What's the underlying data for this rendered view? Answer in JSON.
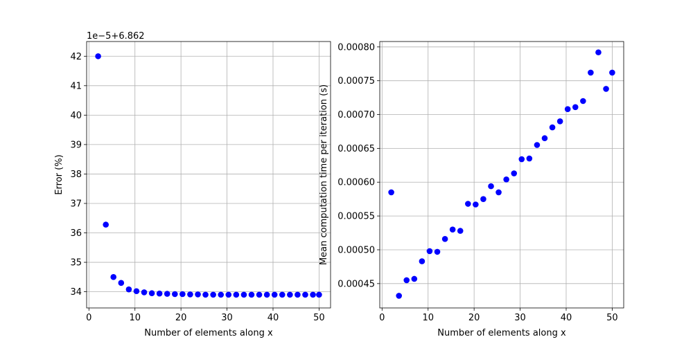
{
  "chart_data": [
    {
      "type": "scatter",
      "xlabel": "Number of elements along x",
      "ylabel": "Error (%)",
      "offset_label": "1e−5+6.862",
      "xlim": [
        -0.5,
        52.5
      ],
      "ylim": [
        33.45,
        42.5
      ],
      "xticks": [
        0,
        10,
        20,
        30,
        40,
        50
      ],
      "yticks": [
        34,
        35,
        36,
        37,
        38,
        39,
        40,
        41,
        42
      ],
      "ytick_labels": [
        "34",
        "35",
        "36",
        "37",
        "38",
        "39",
        "40",
        "41",
        "42"
      ],
      "grid": true,
      "color": "#0000ff",
      "x": [
        2,
        3.67,
        5.33,
        7,
        8.67,
        10.33,
        12,
        13.67,
        15.33,
        17,
        18.67,
        20.33,
        22,
        23.67,
        25.33,
        27,
        28.67,
        30.33,
        32,
        33.67,
        35.33,
        37,
        38.67,
        40.33,
        42,
        43.67,
        45.33,
        47,
        48.67,
        50
      ],
      "y": [
        42.0,
        36.28,
        34.5,
        34.3,
        34.08,
        34.02,
        33.98,
        33.95,
        33.94,
        33.93,
        33.92,
        33.92,
        33.91,
        33.91,
        33.9,
        33.9,
        33.9,
        33.9,
        33.9,
        33.9,
        33.9,
        33.9,
        33.9,
        33.9,
        33.9,
        33.9,
        33.9,
        33.9,
        33.9,
        33.9
      ]
    },
    {
      "type": "scatter",
      "xlabel": "Number of elements along x",
      "ylabel": "Mean computation time per iteration (s)",
      "xlim": [
        -0.5,
        52.5
      ],
      "ylim": [
        0.000414,
        0.000808
      ],
      "xticks": [
        0,
        10,
        20,
        30,
        40,
        50
      ],
      "yticks": [
        0.00045,
        0.0005,
        0.00055,
        0.0006,
        0.00065,
        0.0007,
        0.00075,
        0.0008
      ],
      "ytick_labels": [
        "0.00045",
        "0.00050",
        "0.00055",
        "0.00060",
        "0.00065",
        "0.00070",
        "0.00075",
        "0.00080"
      ],
      "grid": true,
      "color": "#0000ff",
      "x": [
        2,
        3.67,
        5.33,
        7,
        8.67,
        10.33,
        12,
        13.67,
        15.33,
        17,
        18.67,
        20.33,
        22,
        23.67,
        25.33,
        27,
        28.67,
        30.33,
        32,
        33.67,
        35.33,
        37,
        38.67,
        40.33,
        42,
        43.67,
        45.33,
        47,
        48.67,
        50
      ],
      "y": [
        0.000585,
        0.000432,
        0.000455,
        0.000457,
        0.000483,
        0.000498,
        0.000497,
        0.000516,
        0.00053,
        0.000528,
        0.000568,
        0.000567,
        0.000575,
        0.000594,
        0.000585,
        0.000604,
        0.000613,
        0.000634,
        0.000635,
        0.000655,
        0.000665,
        0.000681,
        0.00069,
        0.000708,
        0.000711,
        0.00072,
        0.000762,
        0.000792,
        0.000738,
        0.000762
      ]
    }
  ]
}
